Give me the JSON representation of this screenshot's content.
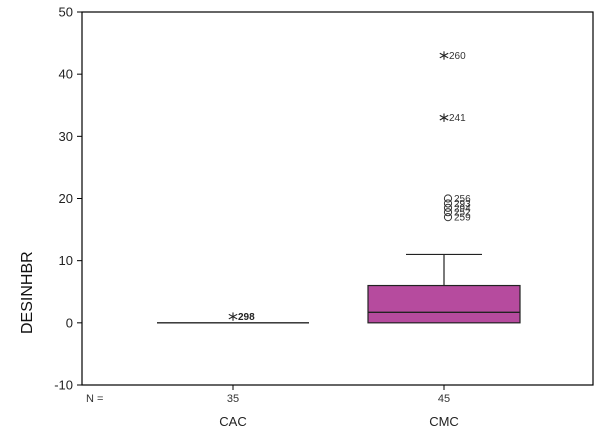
{
  "chart_data": {
    "type": "boxplot",
    "ylabel": "DESINHBR",
    "ylim": [
      -10,
      50
    ],
    "yticks": [
      -10,
      0,
      10,
      20,
      30,
      40,
      50
    ],
    "n_label": "N =",
    "colors": {
      "box_fill": "#b64b9e",
      "box_stroke": "#222222"
    },
    "groups": [
      {
        "category": "CAC",
        "n": "35",
        "min": 0,
        "q1": 0,
        "median": 0,
        "q3": 0,
        "max": 0,
        "outliers": [],
        "extremes": [
          {
            "value": 1,
            "label": "298"
          }
        ]
      },
      {
        "category": "CMC",
        "n": "45",
        "min": 0,
        "q1": 0,
        "median": 1.7,
        "q3": 6,
        "max": 11,
        "outliers": [
          {
            "value": 20,
            "label": "256"
          },
          {
            "value": 19.2,
            "label": "293"
          },
          {
            "value": 18.5,
            "label": "294"
          },
          {
            "value": 17.8,
            "label": "252"
          },
          {
            "value": 17,
            "label": "259"
          }
        ],
        "extremes": [
          {
            "value": 43,
            "label": "260"
          },
          {
            "value": 33,
            "label": "241"
          }
        ]
      }
    ]
  }
}
